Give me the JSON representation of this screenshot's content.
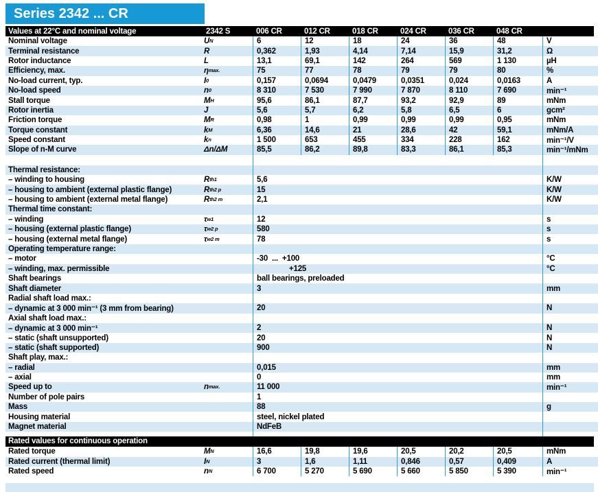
{
  "title": "Series 2342 ... CR",
  "colors": {
    "brand_blue": "#1799D5",
    "row_shade": "#D5E8F4",
    "grid_line": "#2AA0DA",
    "section_bar": "#000000"
  },
  "header": {
    "label": "Values at 22°C and nominal voltage",
    "series": "2342 S",
    "variants": [
      "006 CR",
      "012 CR",
      "018 CR",
      "024 CR",
      "036 CR",
      "048 CR"
    ]
  },
  "main_rows": [
    {
      "t": "cols",
      "label": "Nominal voltage",
      "sym": "U",
      "sub": "N",
      "vals": [
        "6",
        "12",
        "18",
        "24",
        "36",
        "48"
      ],
      "unit": "V",
      "shade": false
    },
    {
      "t": "cols",
      "label": "Terminal resistance",
      "sym": "R",
      "sub": "",
      "vals": [
        "0,362",
        "1,93",
        "4,14",
        "7,14",
        "15,9",
        "31,2"
      ],
      "unit": "Ω",
      "shade": true
    },
    {
      "t": "cols",
      "label": "Rotor inductance",
      "sym": "L",
      "sub": "",
      "vals": [
        "13,1",
        "69,1",
        "142",
        "264",
        "569",
        "1 130"
      ],
      "unit": "µH",
      "shade": false
    },
    {
      "t": "cols",
      "label": "Efficiency, max.",
      "sym": "η",
      "sub": "max.",
      "vals": [
        "75",
        "77",
        "78",
        "79",
        "79",
        "80"
      ],
      "unit": "%",
      "shade": true
    },
    {
      "t": "cols",
      "label": "No-load current, typ.",
      "sym": "I",
      "sub": "0",
      "vals": [
        "0,157",
        "0,0694",
        "0,0479",
        "0,0351",
        "0,024",
        "0,0163"
      ],
      "unit": "A",
      "shade": false
    },
    {
      "t": "cols",
      "label": "No-load speed",
      "sym": "n",
      "sub": "0",
      "vals": [
        "8 310",
        "7 530",
        "7 990",
        "7 870",
        "8 110",
        "7 690"
      ],
      "unit": "min⁻¹",
      "shade": true
    },
    {
      "t": "cols",
      "label": "Stall torque",
      "sym": "M",
      "sub": "H",
      "vals": [
        "95,6",
        "86,1",
        "87,7",
        "93,2",
        "92,9",
        "89"
      ],
      "unit": "mNm",
      "shade": false
    },
    {
      "t": "cols",
      "label": "Rotor inertia",
      "sym": "J",
      "sub": "",
      "vals": [
        "5,6",
        "5,7",
        "6,2",
        "5,8",
        "6,5",
        "6"
      ],
      "unit": "gcm²",
      "shade": true
    },
    {
      "t": "cols",
      "label": "Friction torque",
      "sym": "M",
      "sub": "R",
      "vals": [
        "0,98",
        "1",
        "0,99",
        "0,99",
        "0,99",
        "0,95"
      ],
      "unit": "mNm",
      "shade": false
    },
    {
      "t": "cols",
      "label": "Torque constant",
      "sym": "k",
      "sub": "M",
      "vals": [
        "6,36",
        "14,6",
        "21",
        "28,6",
        "42",
        "59,1"
      ],
      "unit": "mNm/A",
      "shade": true
    },
    {
      "t": "cols",
      "label": "Speed constant",
      "sym": "k",
      "sub": "n",
      "vals": [
        "1 500",
        "653",
        "455",
        "334",
        "228",
        "162"
      ],
      "unit": "min⁻¹/V",
      "shade": false
    },
    {
      "t": "cols",
      "label": "Slope of n-M curve",
      "sym": "Δn/ΔM",
      "sub": "",
      "vals": [
        "85,5",
        "86,2",
        "89,8",
        "83,3",
        "86,1",
        "85,3"
      ],
      "unit": "min⁻¹/mNm",
      "shade": true
    },
    {
      "t": "gap",
      "h": 15
    },
    {
      "t": "span",
      "label": "Thermal resistance:",
      "sym": "",
      "sub": "",
      "val": "",
      "unit": "",
      "shade": true
    },
    {
      "t": "span",
      "label": "– winding to housing",
      "sym": "R",
      "sub": "th1",
      "val": "5,6",
      "unit": "K/W",
      "shade": false
    },
    {
      "t": "span",
      "label": "– housing to ambient (external plastic flange)",
      "sym": "R",
      "sub": "th2 p",
      "val": "15",
      "unit": "K/W",
      "shade": true
    },
    {
      "t": "span",
      "label": "– housing to ambient (external metal flange)",
      "sym": "R",
      "sub": "th2 m",
      "val": "2,1",
      "unit": "K/W",
      "shade": false
    },
    {
      "t": "span",
      "label": "Thermal time constant:",
      "sym": "",
      "sub": "",
      "val": "",
      "unit": "",
      "shade": true
    },
    {
      "t": "span",
      "label": "– winding",
      "sym": "τ",
      "sub": "w1",
      "val": "12",
      "unit": "s",
      "shade": false
    },
    {
      "t": "span",
      "label": "– housing (external plastic flange)",
      "sym": "τ",
      "sub": "w2 p",
      "val": "580",
      "unit": "s",
      "shade": true
    },
    {
      "t": "span",
      "label": "– housing (external metal flange)",
      "sym": "τ",
      "sub": "w2 m",
      "val": "78",
      "unit": "s",
      "shade": false
    },
    {
      "t": "span",
      "label": "Operating temperature range:",
      "sym": "",
      "sub": "",
      "val": "",
      "unit": "",
      "shade": true
    },
    {
      "t": "span",
      "label": "– motor",
      "sym": "",
      "sub": "",
      "val": "-30  ...  +100",
      "unit": "°C",
      "shade": false
    },
    {
      "t": "span",
      "label": "– winding, max. permissible",
      "sym": "",
      "sub": "",
      "val": "+125",
      "pad": 47,
      "unit": "°C",
      "shade": true
    },
    {
      "t": "span",
      "label": "Shaft bearings",
      "sym": "",
      "sub": "",
      "val": "ball bearings, preloaded",
      "unit": "",
      "shade": false
    },
    {
      "t": "span",
      "label": "Shaft diameter",
      "sym": "",
      "sub": "",
      "val": "3",
      "unit": "mm",
      "shade": true
    },
    {
      "t": "span",
      "label": "Radial shaft load max.:",
      "sym": "",
      "sub": "",
      "val": "",
      "unit": "",
      "shade": false
    },
    {
      "t": "span",
      "label": "– dynamic at 3 000 min⁻¹ (3 mm from bearing)",
      "sym": "",
      "sub": "",
      "val": "20",
      "unit": "N",
      "shade": true
    },
    {
      "t": "span",
      "label": "Axial shaft load max.:",
      "sym": "",
      "sub": "",
      "val": "",
      "unit": "",
      "shade": false
    },
    {
      "t": "span",
      "label": "– dynamic at 3 000 min⁻¹",
      "sym": "",
      "sub": "",
      "val": "2",
      "unit": "N",
      "shade": true
    },
    {
      "t": "span",
      "label": "– static (shaft unsupported)",
      "sym": "",
      "sub": "",
      "val": "20",
      "unit": "N",
      "shade": false
    },
    {
      "t": "span",
      "label": "– static (shaft supported)",
      "sym": "",
      "sub": "",
      "val": "900",
      "unit": "N",
      "shade": true
    },
    {
      "t": "span",
      "label": "Shaft play, max.:",
      "sym": "",
      "sub": "",
      "val": "",
      "unit": "",
      "shade": false
    },
    {
      "t": "span",
      "label": "– radial",
      "sym": "",
      "sub": "",
      "val": "0,015",
      "unit": "mm",
      "shade": true
    },
    {
      "t": "span",
      "label": "– axial",
      "sym": "",
      "sub": "",
      "val": "0",
      "unit": "mm",
      "shade": false
    },
    {
      "t": "span",
      "label": "Speed up to",
      "sym": "n",
      "sub": "max.",
      "val": "11 000",
      "unit": "min⁻¹",
      "shade": true
    },
    {
      "t": "span",
      "label": "Number of pole pairs",
      "sym": "",
      "sub": "",
      "val": "1",
      "unit": "",
      "shade": false
    },
    {
      "t": "span",
      "label": "Mass",
      "sym": "",
      "sub": "",
      "val": "88",
      "unit": "g",
      "shade": true
    },
    {
      "t": "span",
      "label": "Housing material",
      "sym": "",
      "sub": "",
      "val": "steel, nickel plated",
      "unit": "",
      "shade": false
    },
    {
      "t": "span",
      "label": "Magnet material",
      "sym": "",
      "sub": "",
      "val": "NdFeB",
      "unit": "",
      "shade": true
    },
    {
      "t": "gap",
      "h": 7
    }
  ],
  "rated": {
    "bar_label": "Rated values for continuous operation",
    "rows": [
      {
        "t": "cols",
        "label": "Rated torque",
        "sym": "M",
        "sub": "N",
        "vals": [
          "16,6",
          "19,8",
          "19,6",
          "20,5",
          "20,2",
          "20,5"
        ],
        "unit": "mNm",
        "shade": false
      },
      {
        "t": "cols",
        "label": "Rated current (thermal limit)",
        "sym": "I",
        "sub": "N",
        "vals": [
          "3",
          "1,6",
          "1,11",
          "0,846",
          "0,57",
          "0,409"
        ],
        "unit": "A",
        "shade": true
      },
      {
        "t": "cols",
        "label": "Rated speed",
        "sym": "n",
        "sub": "N",
        "vals": [
          "6 700",
          "5 270",
          "5 690",
          "5 660",
          "5 850",
          "5 390"
        ],
        "unit": "min⁻¹",
        "shade": false
      }
    ]
  }
}
